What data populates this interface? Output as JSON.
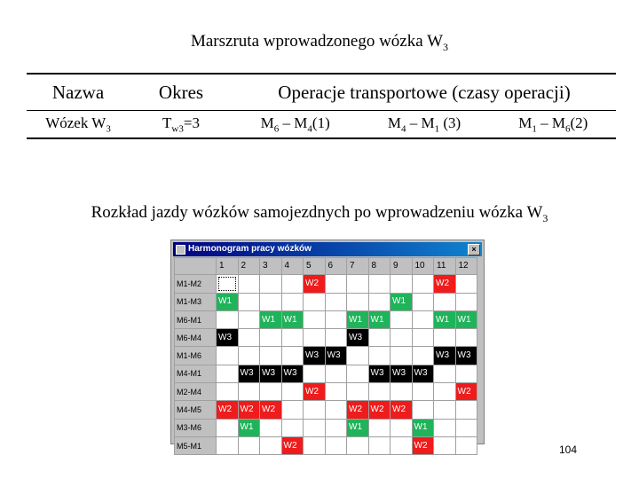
{
  "title": {
    "text": "Marszruta wprowadzonego wózka W",
    "sub": "3"
  },
  "operations_table": {
    "headers": [
      "Nazwa",
      "Okres",
      "Operacje transportowe (czasy operacji)"
    ],
    "row": {
      "name": {
        "text": "Wózek W",
        "sub": "3"
      },
      "period": {
        "pre": "T",
        "sub": "w3",
        "post": "=3"
      },
      "ops": [
        {
          "a": "M",
          "a_sub": "6",
          "dash": " – ",
          "b": "M",
          "b_sub": "4",
          "time": "(1)"
        },
        {
          "a": "M",
          "a_sub": "4",
          "dash": " – ",
          "b": "M",
          "b_sub": "1",
          "time": " (3)"
        },
        {
          "a": "M",
          "a_sub": "1",
          "dash": " – ",
          "b": "M",
          "b_sub": "6",
          "time": "(2)"
        }
      ]
    }
  },
  "subtitle": {
    "text": "Rozkład jazdy wózków samojezdnych po wprowadzeniu wózka W",
    "sub": "3"
  },
  "window": {
    "title": "Harmonogram pracy wózków",
    "close_glyph": "×",
    "columns": [
      "1",
      "2",
      "3",
      "4",
      "5",
      "6",
      "7",
      "8",
      "9",
      "10",
      "11",
      "12"
    ],
    "rows": [
      {
        "label": "M1-M2",
        "cells": [
          "",
          "",
          "",
          "",
          "W2",
          "",
          "",
          "",
          "",
          "",
          "W2",
          ""
        ]
      },
      {
        "label": "M1-M3",
        "cells": [
          "W1",
          "",
          "",
          "",
          "",
          "",
          "",
          "",
          "W1",
          "",
          "",
          ""
        ]
      },
      {
        "label": "M6-M1",
        "cells": [
          "",
          "",
          "W1",
          "W1",
          "",
          "",
          "W1",
          "W1",
          "",
          "",
          "W1",
          "W1"
        ]
      },
      {
        "label": "M6-M4",
        "cells": [
          "W3",
          "",
          "",
          "",
          "",
          "",
          "W3",
          "",
          "",
          "",
          "",
          ""
        ]
      },
      {
        "label": "M1-M6",
        "cells": [
          "",
          "",
          "",
          "",
          "W3",
          "W3",
          "",
          "",
          "",
          "",
          "W3",
          "W3"
        ]
      },
      {
        "label": "M4-M1",
        "cells": [
          "",
          "W3",
          "W3",
          "W3",
          "",
          "",
          "",
          "W3",
          "W3",
          "W3",
          "",
          ""
        ]
      },
      {
        "label": "M2-M4",
        "cells": [
          "",
          "",
          "",
          "",
          "W2",
          "",
          "",
          "",
          "",
          "",
          "",
          "W2"
        ]
      },
      {
        "label": "M4-M5",
        "cells": [
          "W2",
          "W2",
          "W2",
          "",
          "",
          "",
          "W2",
          "W2",
          "W2",
          "",
          "",
          ""
        ]
      },
      {
        "label": "M3-M6",
        "cells": [
          "",
          "W1",
          "",
          "",
          "",
          "",
          "W1",
          "",
          "",
          "W1",
          "",
          ""
        ]
      },
      {
        "label": "M5-M1",
        "cells": [
          "",
          "",
          "",
          "W2",
          "",
          "",
          "",
          "",
          "",
          "W2",
          "",
          ""
        ]
      }
    ]
  },
  "page_number": "104",
  "colors": {
    "W1": "#1fb45a",
    "W2": "#ee1c1c",
    "W3": "#000000"
  }
}
